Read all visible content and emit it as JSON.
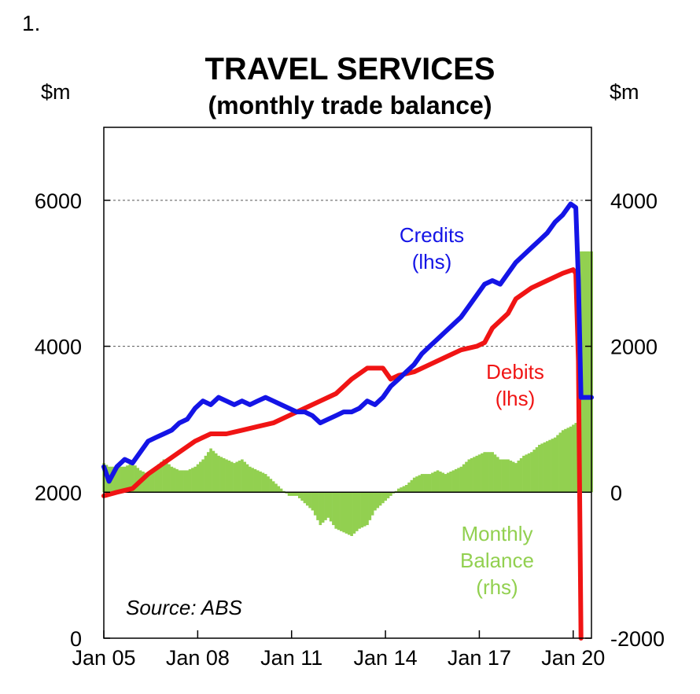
{
  "figure": {
    "number": "1.",
    "title": "TRAVEL SERVICES",
    "subtitle": "(monthly trade balance)",
    "unit_left": "$m",
    "unit_right": "$m",
    "source": "Source: ABS"
  },
  "colors": {
    "credits": "#1414e6",
    "debits": "#f01414",
    "balance": "#92d050",
    "grid": "#555555"
  },
  "annotations": {
    "credits": [
      "Credits",
      "(lhs)"
    ],
    "debits": [
      "Debits",
      "(lhs)"
    ],
    "balance": [
      "Monthly",
      "Balance",
      "(rhs)"
    ]
  },
  "chart_data": {
    "type": "line",
    "x_tick_labels": [
      "Jan 05",
      "Jan 08",
      "Jan 11",
      "Jan 14",
      "Jan 17",
      "Jan 20"
    ],
    "x_range": [
      "2005-01",
      "2020-08"
    ],
    "y_left": {
      "range": [
        0,
        7000
      ],
      "ticks": [
        "0",
        "2000",
        "4000",
        "6000"
      ]
    },
    "y_right": {
      "range": [
        -2000,
        5000
      ],
      "ticks": [
        "-2000",
        "0",
        "2000",
        "4000"
      ]
    },
    "gridlines_left": [
      4000,
      6000
    ],
    "series": [
      {
        "name": "Credits",
        "axis": "left",
        "style": "line",
        "color": "#1414e6",
        "points": [
          [
            "2005-01",
            2350
          ],
          [
            "2005-03",
            2150
          ],
          [
            "2005-06",
            2350
          ],
          [
            "2005-09",
            2450
          ],
          [
            "2005-12",
            2400
          ],
          [
            "2006-03",
            2550
          ],
          [
            "2006-06",
            2700
          ],
          [
            "2006-09",
            2750
          ],
          [
            "2006-12",
            2800
          ],
          [
            "2007-03",
            2850
          ],
          [
            "2007-06",
            2950
          ],
          [
            "2007-09",
            3000
          ],
          [
            "2007-12",
            3150
          ],
          [
            "2008-03",
            3250
          ],
          [
            "2008-06",
            3200
          ],
          [
            "2008-09",
            3300
          ],
          [
            "2008-12",
            3250
          ],
          [
            "2009-03",
            3200
          ],
          [
            "2009-06",
            3250
          ],
          [
            "2009-09",
            3200
          ],
          [
            "2009-12",
            3250
          ],
          [
            "2010-03",
            3300
          ],
          [
            "2010-06",
            3250
          ],
          [
            "2010-09",
            3200
          ],
          [
            "2010-12",
            3150
          ],
          [
            "2011-03",
            3100
          ],
          [
            "2011-06",
            3100
          ],
          [
            "2011-09",
            3050
          ],
          [
            "2011-12",
            2950
          ],
          [
            "2012-03",
            3000
          ],
          [
            "2012-06",
            3050
          ],
          [
            "2012-09",
            3100
          ],
          [
            "2012-12",
            3100
          ],
          [
            "2013-03",
            3150
          ],
          [
            "2013-06",
            3250
          ],
          [
            "2013-09",
            3200
          ],
          [
            "2013-12",
            3300
          ],
          [
            "2014-03",
            3450
          ],
          [
            "2014-06",
            3550
          ],
          [
            "2014-09",
            3650
          ],
          [
            "2014-12",
            3750
          ],
          [
            "2015-03",
            3900
          ],
          [
            "2015-06",
            4000
          ],
          [
            "2015-09",
            4100
          ],
          [
            "2015-12",
            4200
          ],
          [
            "2016-03",
            4300
          ],
          [
            "2016-06",
            4400
          ],
          [
            "2016-09",
            4550
          ],
          [
            "2016-12",
            4700
          ],
          [
            "2017-03",
            4850
          ],
          [
            "2017-06",
            4900
          ],
          [
            "2017-09",
            4850
          ],
          [
            "2017-12",
            5000
          ],
          [
            "2018-03",
            5150
          ],
          [
            "2018-06",
            5250
          ],
          [
            "2018-09",
            5350
          ],
          [
            "2018-12",
            5450
          ],
          [
            "2019-03",
            5550
          ],
          [
            "2019-06",
            5700
          ],
          [
            "2019-09",
            5800
          ],
          [
            "2019-12",
            5950
          ],
          [
            "2020-02",
            5900
          ],
          [
            "2020-03",
            4900
          ],
          [
            "2020-04",
            3300
          ],
          [
            "2020-08",
            3300
          ]
        ]
      },
      {
        "name": "Debits",
        "axis": "left",
        "style": "line",
        "color": "#f01414",
        "points": [
          [
            "2005-01",
            1950
          ],
          [
            "2005-06",
            2000
          ],
          [
            "2005-12",
            2050
          ],
          [
            "2006-06",
            2250
          ],
          [
            "2006-12",
            2400
          ],
          [
            "2007-06",
            2550
          ],
          [
            "2007-12",
            2700
          ],
          [
            "2008-06",
            2800
          ],
          [
            "2008-12",
            2800
          ],
          [
            "2009-06",
            2850
          ],
          [
            "2009-12",
            2900
          ],
          [
            "2010-06",
            2950
          ],
          [
            "2010-12",
            3050
          ],
          [
            "2011-06",
            3150
          ],
          [
            "2011-12",
            3250
          ],
          [
            "2012-06",
            3350
          ],
          [
            "2012-12",
            3550
          ],
          [
            "2013-06",
            3700
          ],
          [
            "2013-12",
            3700
          ],
          [
            "2014-03",
            3550
          ],
          [
            "2014-06",
            3600
          ],
          [
            "2014-12",
            3650
          ],
          [
            "2015-06",
            3750
          ],
          [
            "2015-12",
            3850
          ],
          [
            "2016-06",
            3950
          ],
          [
            "2016-12",
            4000
          ],
          [
            "2017-03",
            4050
          ],
          [
            "2017-06",
            4250
          ],
          [
            "2017-12",
            4450
          ],
          [
            "2018-03",
            4650
          ],
          [
            "2018-09",
            4800
          ],
          [
            "2019-03",
            4900
          ],
          [
            "2019-09",
            5000
          ],
          [
            "2020-01",
            5050
          ],
          [
            "2020-02",
            5000
          ],
          [
            "2020-03",
            3800
          ],
          [
            "2020-04",
            0
          ]
        ]
      },
      {
        "name": "Monthly Balance",
        "axis": "right",
        "style": "bar",
        "color": "#92d050",
        "points": [
          [
            "2005-01",
            400
          ],
          [
            "2005-03",
            350
          ],
          [
            "2005-06",
            350
          ],
          [
            "2005-09",
            350
          ],
          [
            "2005-12",
            400
          ],
          [
            "2006-03",
            300
          ],
          [
            "2006-06",
            250
          ],
          [
            "2006-09",
            350
          ],
          [
            "2006-12",
            450
          ],
          [
            "2007-03",
            350
          ],
          [
            "2007-06",
            300
          ],
          [
            "2007-09",
            300
          ],
          [
            "2007-12",
            350
          ],
          [
            "2008-03",
            450
          ],
          [
            "2008-06",
            600
          ],
          [
            "2008-09",
            500
          ],
          [
            "2008-12",
            450
          ],
          [
            "2009-03",
            400
          ],
          [
            "2009-06",
            450
          ],
          [
            "2009-09",
            350
          ],
          [
            "2009-12",
            300
          ],
          [
            "2010-03",
            250
          ],
          [
            "2010-06",
            150
          ],
          [
            "2010-09",
            50
          ],
          [
            "2010-12",
            -50
          ],
          [
            "2011-03",
            -50
          ],
          [
            "2011-06",
            -150
          ],
          [
            "2011-09",
            -250
          ],
          [
            "2011-12",
            -450
          ],
          [
            "2012-03",
            -350
          ],
          [
            "2012-06",
            -500
          ],
          [
            "2012-09",
            -550
          ],
          [
            "2012-12",
            -600
          ],
          [
            "2013-03",
            -500
          ],
          [
            "2013-06",
            -450
          ],
          [
            "2013-09",
            -250
          ],
          [
            "2013-12",
            -150
          ],
          [
            "2014-03",
            -50
          ],
          [
            "2014-06",
            50
          ],
          [
            "2014-09",
            100
          ],
          [
            "2014-12",
            200
          ],
          [
            "2015-03",
            250
          ],
          [
            "2015-06",
            250
          ],
          [
            "2015-09",
            300
          ],
          [
            "2015-12",
            250
          ],
          [
            "2016-03",
            300
          ],
          [
            "2016-06",
            350
          ],
          [
            "2016-09",
            450
          ],
          [
            "2016-12",
            500
          ],
          [
            "2017-03",
            550
          ],
          [
            "2017-06",
            550
          ],
          [
            "2017-09",
            450
          ],
          [
            "2017-12",
            450
          ],
          [
            "2018-03",
            400
          ],
          [
            "2018-06",
            500
          ],
          [
            "2018-09",
            550
          ],
          [
            "2018-12",
            650
          ],
          [
            "2019-03",
            700
          ],
          [
            "2019-06",
            750
          ],
          [
            "2019-09",
            850
          ],
          [
            "2019-12",
            900
          ],
          [
            "2020-02",
            950
          ],
          [
            "2020-03",
            1000
          ],
          [
            "2020-04",
            3300
          ],
          [
            "2020-08",
            3300
          ]
        ]
      }
    ]
  }
}
